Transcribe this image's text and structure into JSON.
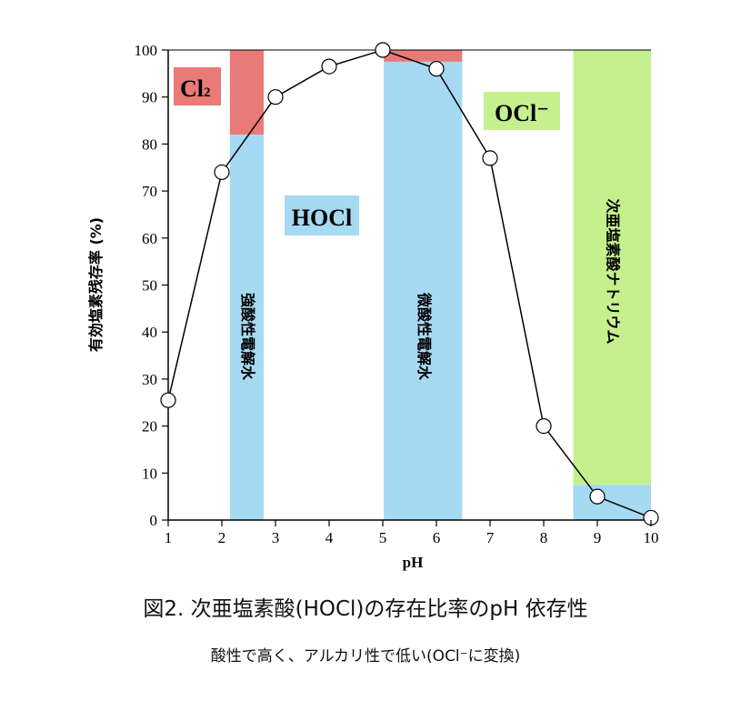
{
  "chart_data": {
    "type": "line",
    "title": "図2. 次亜塩素酸(HOCl)の存在比率のpH 依存性",
    "subtitle": "酸性で高く、アルカリ性で低い(OCl⁻に変換)",
    "xlabel": "pH",
    "ylabel": "有効塩素残存率 (%)",
    "xlim": [
      1,
      10
    ],
    "ylim": [
      0,
      100
    ],
    "xticks": [
      1,
      2,
      3,
      4,
      5,
      6,
      7,
      8,
      9,
      10
    ],
    "yticks": [
      0,
      10,
      20,
      30,
      40,
      50,
      60,
      70,
      80,
      90,
      100
    ],
    "grid": false,
    "series": [
      {
        "name": "有効塩素残存率",
        "x": [
          1,
          2,
          3,
          4,
          5,
          6,
          7,
          8,
          9,
          10
        ],
        "y": [
          25.5,
          74,
          90,
          96.5,
          100,
          96,
          77,
          20,
          5,
          0.5
        ]
      }
    ],
    "bands": [
      {
        "label": "強酸性電解水",
        "x0": 2.15,
        "x1": 2.78,
        "lower_color": "#a6d9f2",
        "upper_color": "#e97a78",
        "split": 82
      },
      {
        "label": "微酸性電解水",
        "x0": 5.02,
        "x1": 6.48,
        "lower_color": "#a6d9f2",
        "upper_color": "#e97a78",
        "split": 97.5
      },
      {
        "label": "次亜塩素酸ナトリウム",
        "x0": 8.55,
        "x1": 10,
        "lower_color": "#a6d9f2",
        "upper_color": "#c6f08e",
        "split": 7.5
      }
    ],
    "region_labels": [
      {
        "text": "Cl",
        "sub": "2",
        "color": "#e97a78"
      },
      {
        "text": "HOCl",
        "color": "#a6d9f2"
      },
      {
        "text": "OCl⁻",
        "color": "#c6f08e"
      }
    ]
  }
}
